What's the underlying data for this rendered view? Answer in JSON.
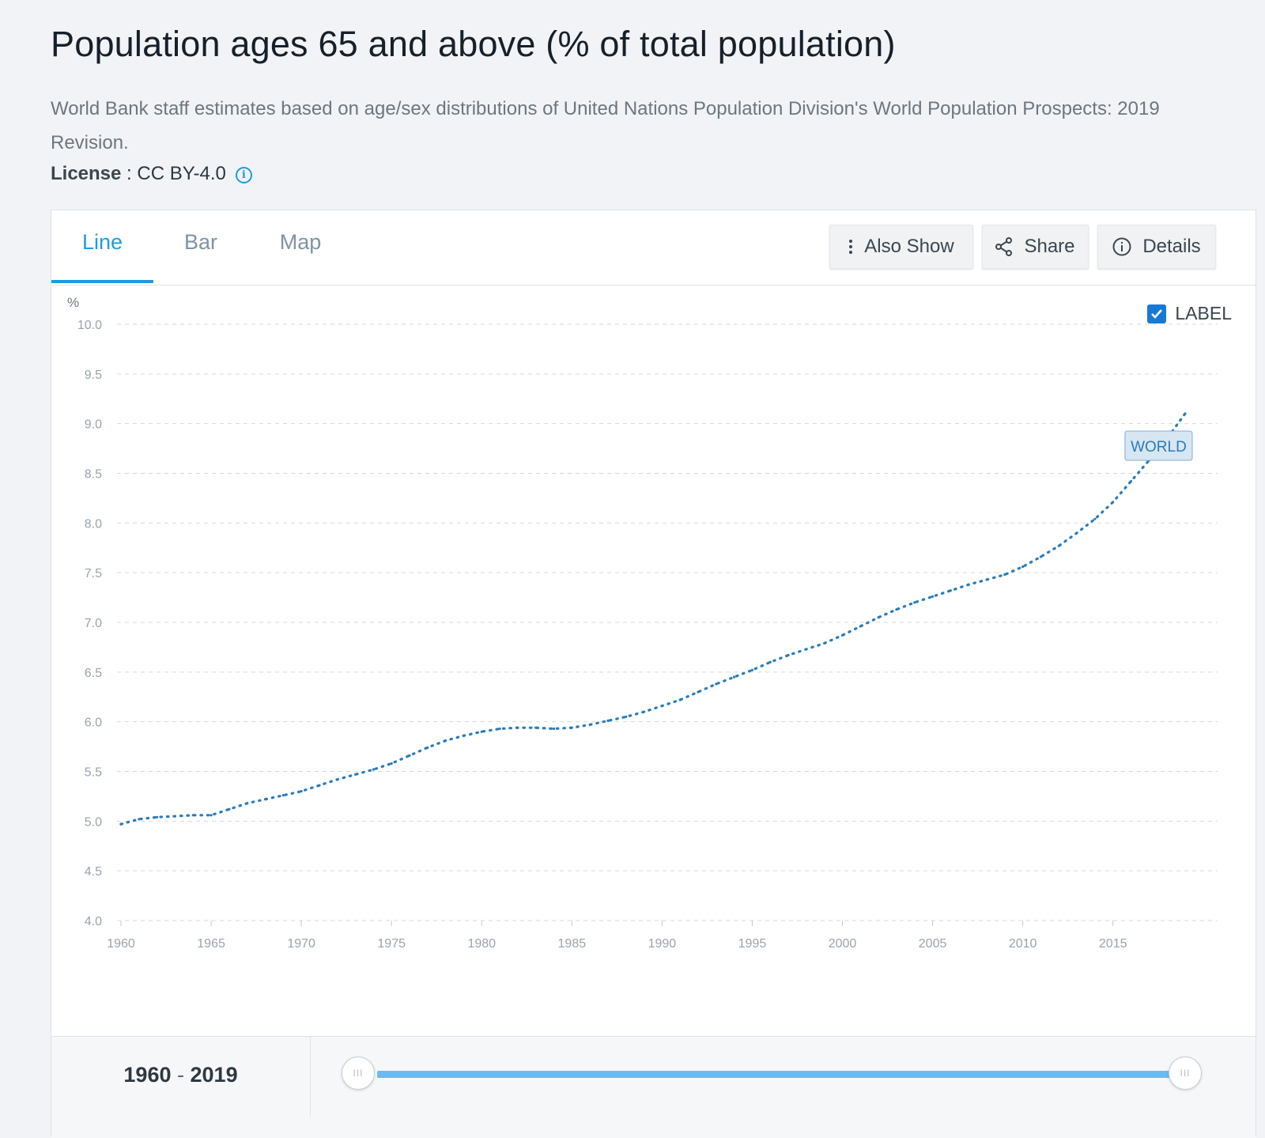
{
  "header": {
    "title": "Population ages 65 and above (% of total population)",
    "source": "World Bank staff estimates based on age/sex distributions of United Nations Population Division's World Population Prospects: 2019 Revision.",
    "license_label": "License",
    "license_sep": " : ",
    "license_value": "CC BY-4.0"
  },
  "tabs": [
    {
      "label": "Line"
    },
    {
      "label": "Bar"
    },
    {
      "label": "Map"
    }
  ],
  "toolbar": {
    "also_show": "Also Show",
    "share": "Share",
    "details": "Details"
  },
  "label_toggle": {
    "text": "LABEL",
    "checked": true
  },
  "slider": {
    "start": "1960",
    "sep": "-",
    "end": "2019",
    "handle_glyph": "III"
  },
  "colors": {
    "accent": "#1e9be0",
    "series": "#2b7bb9",
    "label_bg": "#d6e6f3",
    "grid": "#d5d9dd"
  },
  "chart_data": {
    "type": "line",
    "title": "Population ages 65 and above (% of total population)",
    "xlabel": "",
    "ylabel": "%",
    "ylim": [
      4.0,
      10.0
    ],
    "yticks": [
      "4.0",
      "4.5",
      "5.0",
      "5.5",
      "6.0",
      "6.5",
      "7.0",
      "7.5",
      "8.0",
      "8.5",
      "9.0",
      "9.5",
      "10.0"
    ],
    "xticks": [
      "1960",
      "1965",
      "1970",
      "1975",
      "1980",
      "1985",
      "1990",
      "1995",
      "2000",
      "2005",
      "2010",
      "2015"
    ],
    "grid": true,
    "series": [
      {
        "name": "WORLD",
        "x": [
          1960,
          1961,
          1962,
          1963,
          1964,
          1965,
          1966,
          1967,
          1968,
          1969,
          1970,
          1971,
          1972,
          1973,
          1974,
          1975,
          1976,
          1977,
          1978,
          1979,
          1980,
          1981,
          1982,
          1983,
          1984,
          1985,
          1986,
          1987,
          1988,
          1989,
          1990,
          1991,
          1992,
          1993,
          1994,
          1995,
          1996,
          1997,
          1998,
          1999,
          2000,
          2001,
          2002,
          2003,
          2004,
          2005,
          2006,
          2007,
          2008,
          2009,
          2010,
          2011,
          2012,
          2013,
          2014,
          2015,
          2016,
          2017,
          2018,
          2019
        ],
        "values": [
          4.97,
          5.02,
          5.04,
          5.05,
          5.06,
          5.06,
          5.12,
          5.18,
          5.22,
          5.26,
          5.3,
          5.36,
          5.42,
          5.47,
          5.52,
          5.58,
          5.66,
          5.74,
          5.81,
          5.86,
          5.9,
          5.93,
          5.94,
          5.94,
          5.93,
          5.94,
          5.97,
          6.01,
          6.05,
          6.1,
          6.16,
          6.22,
          6.3,
          6.38,
          6.45,
          6.52,
          6.6,
          6.67,
          6.73,
          6.79,
          6.87,
          6.96,
          7.05,
          7.13,
          7.2,
          7.26,
          7.32,
          7.38,
          7.43,
          7.48,
          7.56,
          7.66,
          7.77,
          7.9,
          8.04,
          8.21,
          8.42,
          8.63,
          8.85,
          9.1
        ]
      }
    ]
  }
}
